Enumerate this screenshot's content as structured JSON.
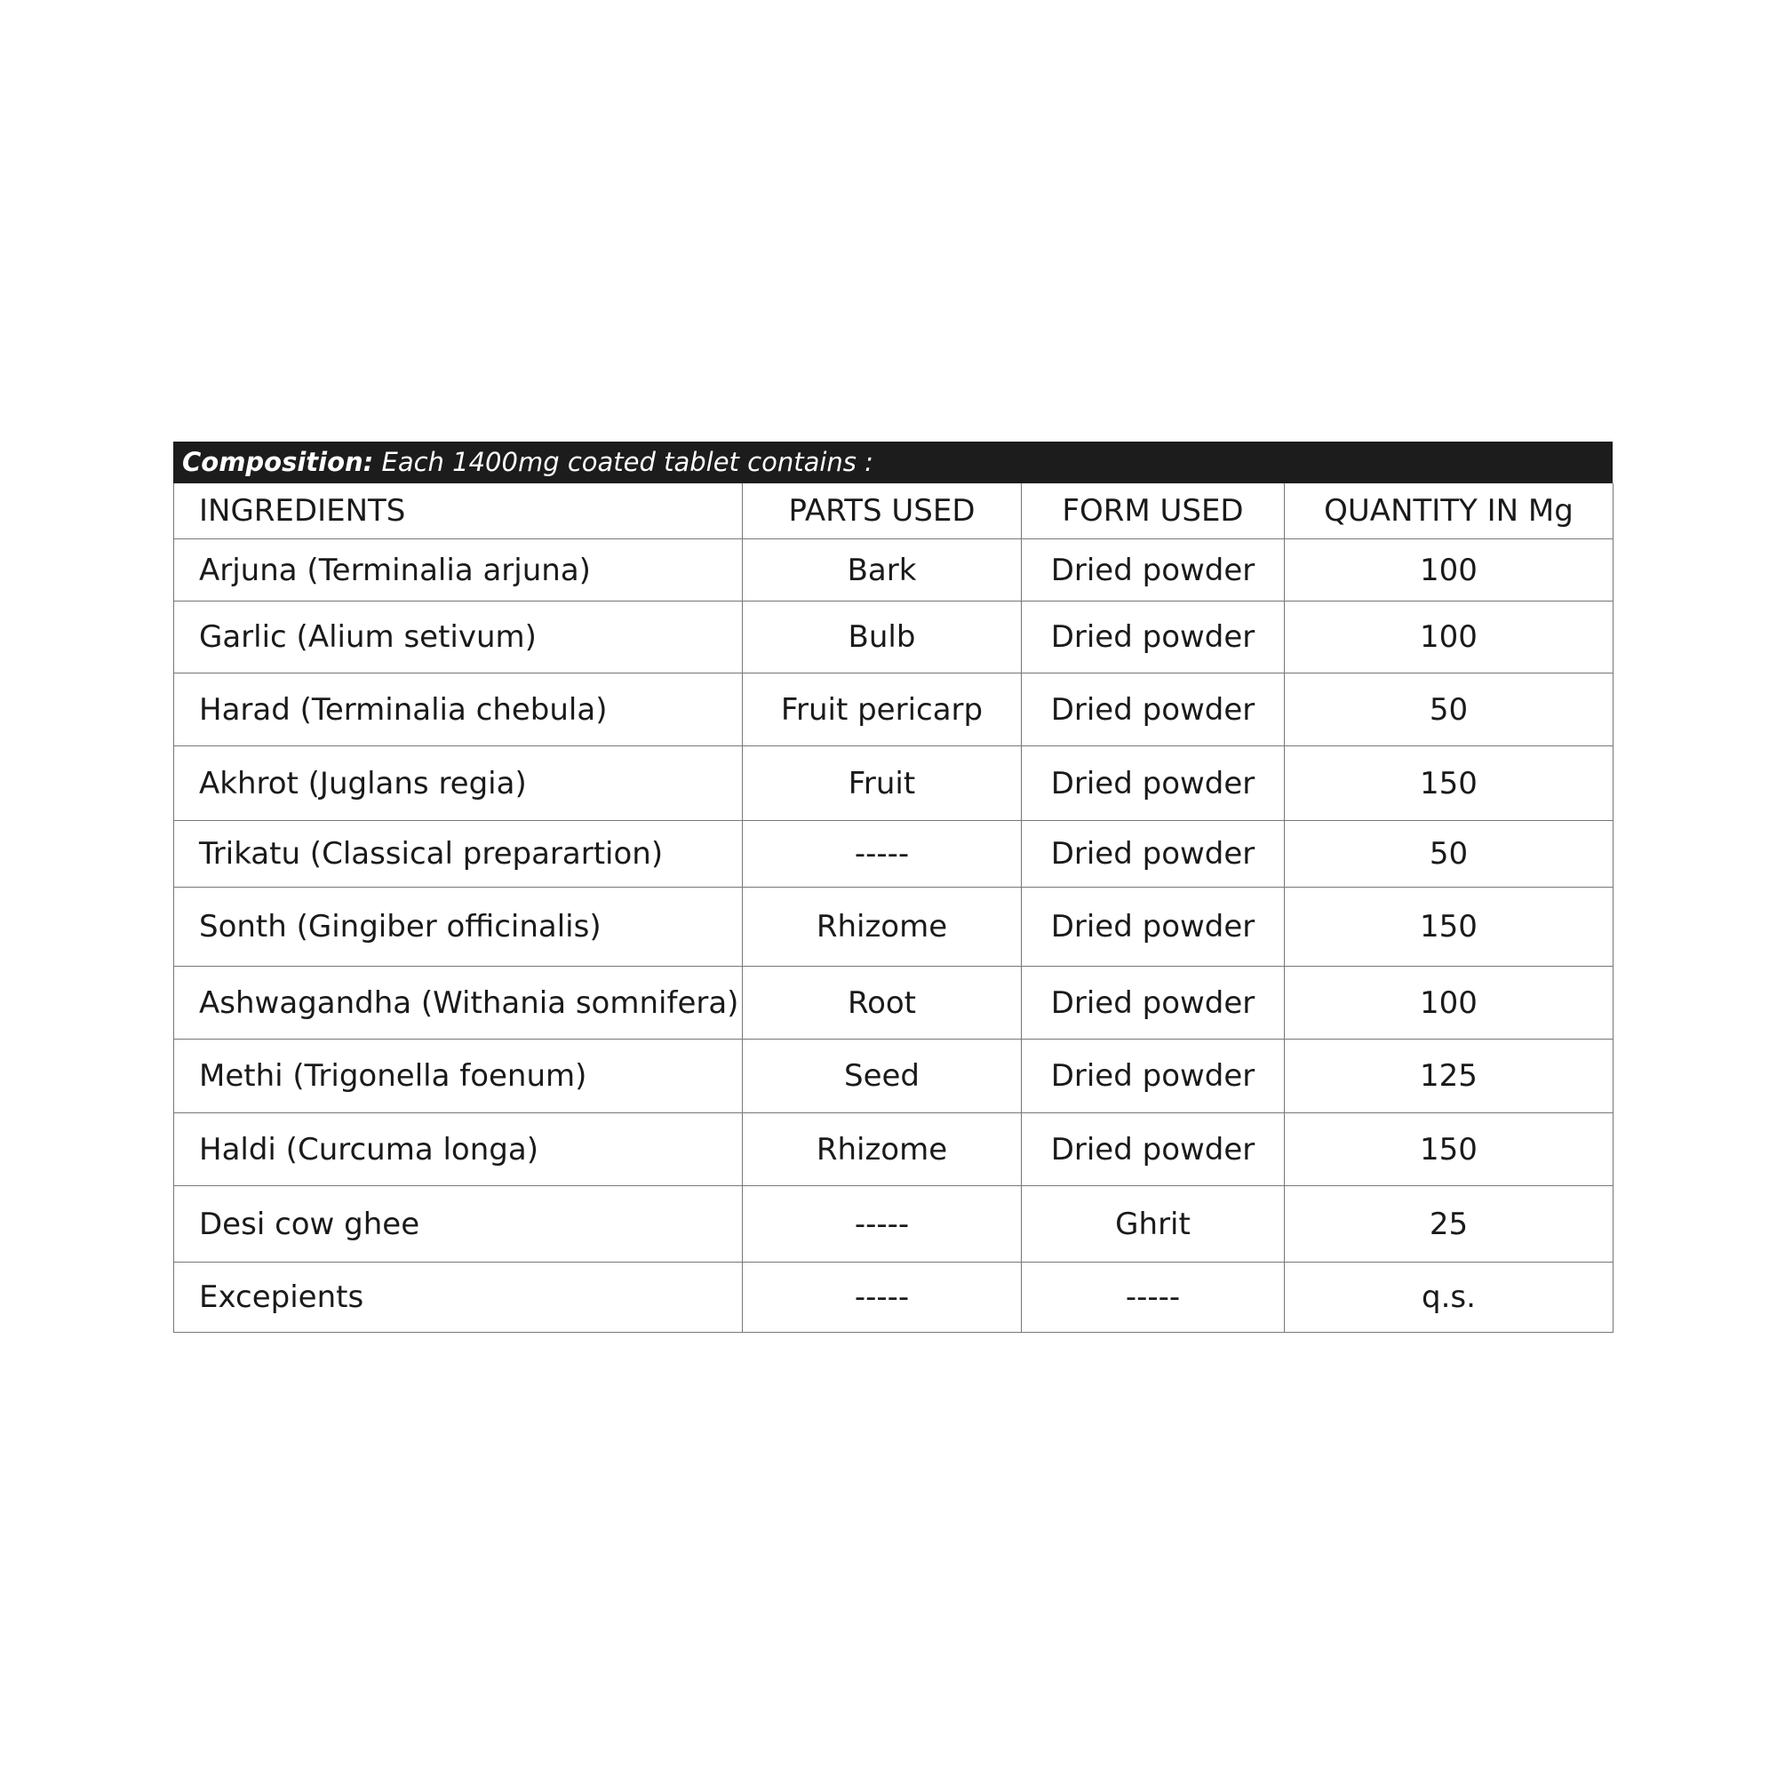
{
  "composition": {
    "label": "Composition:",
    "text": "Each 1400mg coated tablet contains :"
  },
  "columns": [
    "INGREDIENTS",
    "PARTS USED",
    "FORM USED",
    "QUANTITY IN Mg"
  ],
  "rows": [
    [
      "Arjuna (Terminalia arjuna)",
      "Bark",
      "Dried powder",
      "100"
    ],
    [
      "Garlic (Alium setivum)",
      "Bulb",
      "Dried powder",
      "100"
    ],
    [
      "Harad (Terminalia chebula)",
      "Fruit pericarp",
      "Dried powder",
      "50"
    ],
    [
      "Akhrot (Juglans regia)",
      "Fruit",
      "Dried powder",
      "150"
    ],
    [
      "Trikatu (Classical preparartion)",
      "-----",
      "Dried powder",
      "50"
    ],
    [
      "Sonth (Gingiber officinalis)",
      "Rhizome",
      "Dried powder",
      "150"
    ],
    [
      "Ashwagandha (Withania somnifera)",
      "Root",
      "Dried powder",
      "100"
    ],
    [
      "Methi (Trigonella foenum)",
      "Seed",
      "Dried powder",
      "125"
    ],
    [
      "Haldi (Curcuma longa)",
      "Rhizome",
      "Dried powder",
      "150"
    ],
    [
      "Desi cow ghee",
      "-----",
      "Ghrit",
      "25"
    ],
    [
      "Excepients",
      "-----",
      "-----",
      "q.s."
    ]
  ]
}
